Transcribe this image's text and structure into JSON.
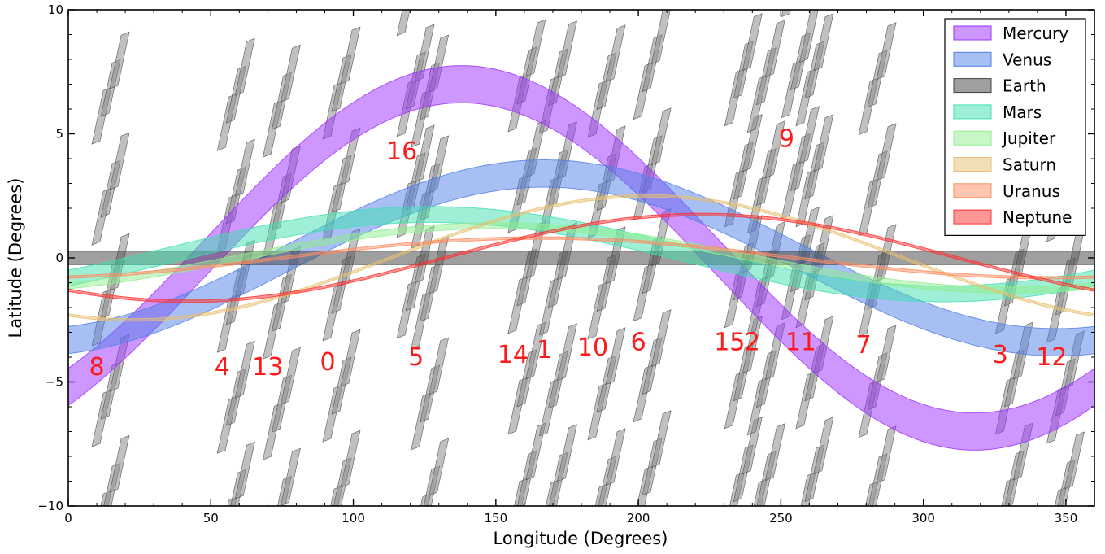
{
  "chart_data": {
    "type": "area",
    "title": "",
    "xlabel": "Longitude (Degrees)",
    "ylabel": "Latitude (Degrees)",
    "xlim": [
      0,
      360
    ],
    "ylim": [
      -10,
      10
    ],
    "x_ticks": [
      0,
      50,
      100,
      150,
      200,
      250,
      300,
      350
    ],
    "y_ticks": [
      -10,
      -5,
      0,
      5,
      10
    ],
    "grid": false,
    "legend_position": "top-right",
    "series": [
      {
        "name": "Mercury",
        "color": "#9b30ff",
        "amplitude": 7.0,
        "peak_longitude": 138,
        "half_width": 0.75,
        "offset": 0
      },
      {
        "name": "Venus",
        "color": "#4f7fe6",
        "amplitude": 3.4,
        "peak_longitude": 167,
        "half_width": 0.55,
        "offset": 0
      },
      {
        "name": "Earth",
        "color": "#404040",
        "amplitude": 0,
        "peak_longitude": 0,
        "half_width": 0.27,
        "offset": 0
      },
      {
        "name": "Mars",
        "color": "#40e0b0",
        "amplitude": 1.6,
        "peak_longitude": 127,
        "half_width": 0.32,
        "offset": 0.15
      },
      {
        "name": "Jupiter",
        "color": "#90ee90",
        "amplitude": 1.3,
        "peak_longitude": 150,
        "half_width": 0.12,
        "offset": 0
      },
      {
        "name": "Saturn",
        "color": "#e8c070",
        "amplitude": 2.5,
        "peak_longitude": 203,
        "half_width": 0.05,
        "offset": 0
      },
      {
        "name": "Uranus",
        "color": "#ff8c60",
        "amplitude": 0.8,
        "peak_longitude": 165,
        "half_width": 0.05,
        "offset": 0
      },
      {
        "name": "Neptune",
        "color": "#ff3030",
        "amplitude": 1.75,
        "peak_longitude": 222,
        "half_width": 0.05,
        "offset": 0
      }
    ],
    "fields": [
      {
        "id": "8",
        "longitude": 10,
        "latitude": -4.4
      },
      {
        "id": "4",
        "longitude": 54,
        "latitude": -4.4
      },
      {
        "id": "13",
        "longitude": 70,
        "latitude": -4.4
      },
      {
        "id": "0",
        "longitude": 91,
        "latitude": -4.2
      },
      {
        "id": "16",
        "longitude": 117,
        "latitude": 4.3
      },
      {
        "id": "5",
        "longitude": 122,
        "latitude": -4.0
      },
      {
        "id": "14",
        "longitude": 156,
        "latitude": -3.9
      },
      {
        "id": "1",
        "longitude": 167,
        "latitude": -3.7
      },
      {
        "id": "10",
        "longitude": 184,
        "latitude": -3.6
      },
      {
        "id": "6",
        "longitude": 200,
        "latitude": -3.4
      },
      {
        "id": "15",
        "longitude": 232,
        "latitude": -3.4
      },
      {
        "id": "2",
        "longitude": 240,
        "latitude": -3.4
      },
      {
        "id": "9",
        "longitude": 252,
        "latitude": 4.8
      },
      {
        "id": "11",
        "longitude": 257,
        "latitude": -3.4
      },
      {
        "id": "7",
        "longitude": 279,
        "latitude": -3.5
      },
      {
        "id": "3",
        "longitude": 327,
        "latitude": -3.9
      },
      {
        "id": "12",
        "longitude": 345,
        "latitude": -4.0
      }
    ]
  }
}
